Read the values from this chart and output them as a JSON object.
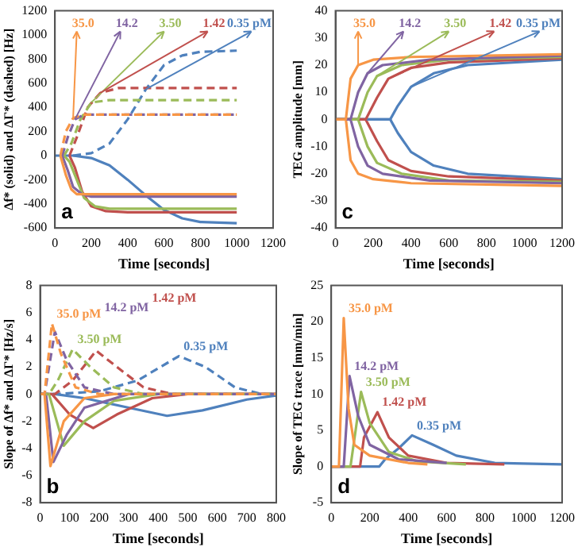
{
  "chart_data": [
    {
      "type": "line",
      "xlabel": "Time [seconds]",
      "ylabel": "Δf* (solid) and ΔΓ* (dashed) [Hz]",
      "xlim": [
        0,
        1200
      ],
      "xticks": [
        0,
        200,
        400,
        600,
        800,
        1000,
        1200
      ],
      "ylim": [
        -600,
        1200
      ],
      "yticks": [
        -600,
        -400,
        -200,
        0,
        200,
        400,
        600,
        800,
        1000,
        1200
      ],
      "grid": false,
      "legend": false,
      "marker": "none",
      "annotations": [
        "a"
      ],
      "series": [
        {
          "name": "35.0",
          "color": "#f79646",
          "line_style": "dashed",
          "x": [
            30,
            60,
            100,
            150,
            1000
          ],
          "values": [
            0,
            200,
            310,
            340,
            340
          ]
        },
        {
          "name": "14.2",
          "color": "#8064a2",
          "line_style": "dashed",
          "x": [
            40,
            70,
            110,
            160,
            1000
          ],
          "values": [
            0,
            150,
            300,
            340,
            340
          ]
        },
        {
          "name": "3.50",
          "color": "#9bbb59",
          "line_style": "dashed",
          "x": [
            50,
            90,
            140,
            200,
            300,
            1000
          ],
          "values": [
            0,
            100,
            300,
            440,
            460,
            460
          ]
        },
        {
          "name": "1.42",
          "color": "#c0504d",
          "line_style": "dashed",
          "x": [
            80,
            120,
            180,
            250,
            350,
            1000
          ],
          "values": [
            0,
            150,
            400,
            520,
            560,
            560
          ]
        },
        {
          "name": "0.35 pM",
          "color": "#4f81bd",
          "line_style": "dashed",
          "x": [
            100,
            200,
            300,
            400,
            500,
            600,
            700,
            800,
            1000
          ],
          "values": [
            0,
            20,
            100,
            300,
            550,
            750,
            830,
            860,
            870
          ]
        },
        {
          "color": "#f79646",
          "line_style": "solid",
          "x": [
            30,
            60,
            90,
            120,
            150,
            200,
            1000
          ],
          "values": [
            0,
            -160,
            -280,
            -320,
            -320,
            -320,
            -320
          ]
        },
        {
          "color": "#8064a2",
          "line_style": "solid",
          "x": [
            40,
            70,
            100,
            150,
            200,
            1000
          ],
          "values": [
            0,
            -120,
            -260,
            -320,
            -340,
            -340
          ]
        },
        {
          "color": "#9bbb59",
          "line_style": "solid",
          "x": [
            50,
            80,
            120,
            160,
            220,
            300,
            1000
          ],
          "values": [
            0,
            -50,
            -200,
            -350,
            -420,
            -440,
            -440
          ]
        },
        {
          "color": "#c0504d",
          "line_style": "solid",
          "x": [
            80,
            110,
            150,
            200,
            280,
            400,
            1000
          ],
          "values": [
            0,
            -100,
            -300,
            -420,
            -460,
            -470,
            -470
          ]
        },
        {
          "color": "#4f81bd",
          "line_style": "solid",
          "x": [
            0,
            100,
            200,
            300,
            400,
            500,
            600,
            700,
            800,
            1000
          ],
          "values": [
            0,
            0,
            -20,
            -80,
            -200,
            -330,
            -450,
            -520,
            -550,
            -560
          ]
        }
      ]
    },
    {
      "type": "line",
      "xlabel": "Time [seconds]",
      "ylabel": "TEG amplitude [mm]",
      "xlim": [
        0,
        1200
      ],
      "xticks": [
        0,
        200,
        400,
        600,
        800,
        1000,
        1200
      ],
      "ylim": [
        -40,
        40
      ],
      "yticks": [
        -40,
        -30,
        -20,
        -10,
        0,
        10,
        20,
        30,
        40
      ],
      "grid": false,
      "legend": false,
      "marker": "none",
      "line_style": "solid",
      "annotations": [
        "c"
      ],
      "series": [
        {
          "name": "35.0",
          "color": "#f79646",
          "x": [
            0,
            55,
            80,
            120,
            200,
            400,
            1200
          ],
          "values": [
            0,
            0,
            15,
            20,
            22,
            23,
            24
          ]
        },
        {
          "name": "14.2",
          "color": "#8064a2",
          "x": [
            0,
            80,
            120,
            170,
            250,
            500,
            1200
          ],
          "values": [
            0,
            0,
            10,
            17,
            20,
            22,
            23.5
          ]
        },
        {
          "name": "3.50",
          "color": "#9bbb59",
          "x": [
            0,
            120,
            170,
            220,
            350,
            600,
            1200
          ],
          "values": [
            0,
            0,
            10,
            16,
            20,
            22,
            23
          ]
        },
        {
          "name": "1.42",
          "color": "#c0504d",
          "x": [
            0,
            160,
            220,
            280,
            400,
            600,
            1200
          ],
          "values": [
            0,
            0,
            8,
            15,
            19,
            21,
            22.5
          ]
        },
        {
          "name": "0.35 pM",
          "color": "#4f81bd",
          "x": [
            0,
            290,
            330,
            400,
            520,
            700,
            1200
          ],
          "values": [
            0,
            0,
            5,
            12,
            17,
            20,
            22
          ]
        },
        {
          "color": "#f79646",
          "x": [
            0,
            55,
            80,
            120,
            200,
            400,
            1200
          ],
          "values": [
            0,
            0,
            -15,
            -20,
            -22,
            -23.5,
            -24.5
          ]
        },
        {
          "color": "#8064a2",
          "x": [
            0,
            80,
            120,
            170,
            250,
            500,
            1200
          ],
          "values": [
            0,
            0,
            -10,
            -17,
            -20,
            -22.5,
            -23.5
          ]
        },
        {
          "color": "#9bbb59",
          "x": [
            0,
            120,
            170,
            220,
            350,
            600,
            1200
          ],
          "values": [
            0,
            0,
            -10,
            -16,
            -20,
            -22.5,
            -23
          ]
        },
        {
          "color": "#c0504d",
          "x": [
            0,
            160,
            220,
            280,
            400,
            600,
            1200
          ],
          "values": [
            0,
            0,
            -8,
            -15,
            -19,
            -21,
            -22.5
          ]
        },
        {
          "color": "#4f81bd",
          "x": [
            0,
            290,
            330,
            400,
            520,
            700,
            1200
          ],
          "values": [
            0,
            0,
            -5,
            -12,
            -17,
            -20,
            -22
          ]
        }
      ]
    },
    {
      "type": "line",
      "xlabel": "Time [seconds]",
      "ylabel": "Slope of Δf* and ΔΓ* [Hz/s]",
      "xlim": [
        0,
        800
      ],
      "xticks": [
        0,
        100,
        200,
        300,
        400,
        500,
        600,
        700,
        800
      ],
      "ylim": [
        -8,
        8
      ],
      "yticks": [
        -8,
        -6,
        -4,
        -2,
        0,
        2,
        4,
        6,
        8
      ],
      "grid": false,
      "legend": false,
      "marker": "none",
      "annotations": [
        "b"
      ],
      "series": [
        {
          "name": "35.0 pM",
          "color": "#f79646",
          "line_style": "dashed",
          "x": [
            0,
            15,
            40,
            70,
            120,
            200,
            800
          ],
          "values": [
            0,
            0,
            5.2,
            3,
            0.5,
            0,
            0
          ]
        },
        {
          "name": "14.2 pM",
          "color": "#8064a2",
          "line_style": "dashed",
          "x": [
            0,
            15,
            50,
            90,
            150,
            250,
            800
          ],
          "values": [
            0,
            0,
            4.6,
            2.5,
            0.5,
            0,
            0
          ]
        },
        {
          "name": "3.50 pM",
          "color": "#9bbb59",
          "line_style": "dashed",
          "x": [
            0,
            30,
            60,
            110,
            170,
            250,
            350,
            800
          ],
          "values": [
            0,
            0,
            1,
            3.3,
            2,
            0.5,
            0,
            0
          ]
        },
        {
          "name": "1.42 pM",
          "color": "#c0504d",
          "line_style": "dashed",
          "x": [
            0,
            50,
            110,
            190,
            260,
            350,
            450,
            800
          ],
          "values": [
            0,
            0,
            1,
            3.2,
            2,
            0.5,
            0,
            0
          ]
        },
        {
          "name": "0.35 pM",
          "color": "#4f81bd",
          "line_style": "dashed",
          "x": [
            0,
            50,
            200,
            330,
            470,
            560,
            660,
            750,
            800
          ],
          "values": [
            0,
            0,
            0.2,
            1,
            2.8,
            2,
            0.5,
            0,
            0
          ]
        },
        {
          "color": "#f79646",
          "line_style": "solid",
          "x": [
            0,
            15,
            35,
            80,
            150,
            250,
            800
          ],
          "values": [
            0,
            0,
            -5.3,
            -2,
            -0.3,
            0,
            0
          ]
        },
        {
          "color": "#8064a2",
          "line_style": "solid",
          "x": [
            0,
            20,
            45,
            90,
            150,
            300,
            800
          ],
          "values": [
            0,
            0,
            -5,
            -3,
            -1,
            0,
            0
          ]
        },
        {
          "color": "#9bbb59",
          "line_style": "solid",
          "x": [
            0,
            30,
            80,
            150,
            250,
            400,
            800
          ],
          "values": [
            0,
            0,
            -3.8,
            -2,
            -0.5,
            0,
            0
          ]
        },
        {
          "color": "#c0504d",
          "line_style": "solid",
          "x": [
            0,
            40,
            100,
            180,
            260,
            380,
            500,
            800
          ],
          "values": [
            0,
            0,
            -1.5,
            -2.5,
            -1.5,
            -0.3,
            0,
            0
          ]
        },
        {
          "color": "#4f81bd",
          "line_style": "solid",
          "x": [
            0,
            50,
            150,
            300,
            430,
            550,
            700,
            800
          ],
          "values": [
            0,
            0,
            -0.3,
            -1,
            -1.6,
            -1.2,
            -0.4,
            -0.1
          ]
        }
      ]
    },
    {
      "type": "line",
      "xlabel": "Time [seconds]",
      "ylabel": "Slope of TEG trace [mm/min]",
      "xlim": [
        0,
        1200
      ],
      "xticks": [
        0,
        200,
        400,
        600,
        800,
        1000,
        1200
      ],
      "ylim": [
        -5,
        25
      ],
      "yticks": [
        -5,
        0,
        5,
        10,
        15,
        20,
        25
      ],
      "grid": false,
      "legend": false,
      "marker": "none",
      "line_style": "solid",
      "annotations": [
        "d"
      ],
      "series": [
        {
          "name": "35.0 pM",
          "color": "#f79646",
          "x": [
            0,
            40,
            65,
            90,
            120,
            200,
            400,
            500
          ],
          "values": [
            0,
            0,
            20.5,
            8,
            3,
            1.5,
            0.5,
            0.3
          ]
        },
        {
          "name": "14.2 pM",
          "color": "#8064a2",
          "x": [
            0,
            65,
            95,
            140,
            200,
            350,
            600
          ],
          "values": [
            0,
            0,
            12.5,
            7,
            3,
            1,
            0.5
          ]
        },
        {
          "name": "3.50 pM",
          "color": "#9bbb59",
          "x": [
            0,
            100,
            155,
            200,
            300,
            450,
            700
          ],
          "values": [
            0,
            0,
            10.3,
            6,
            2,
            0.7,
            0.3
          ]
        },
        {
          "name": "1.42 pM",
          "color": "#c0504d",
          "x": [
            0,
            150,
            170,
            240,
            300,
            400,
            600,
            900
          ],
          "values": [
            0,
            0,
            4,
            7.5,
            4,
            1.5,
            0.5,
            0.3
          ]
        },
        {
          "name": "0.35 pM",
          "color": "#4f81bd",
          "x": [
            0,
            250,
            280,
            350,
            420,
            530,
            650,
            850,
            1200
          ],
          "values": [
            0,
            0,
            1,
            2.5,
            4.3,
            3,
            1.5,
            0.5,
            0.3
          ]
        }
      ]
    }
  ]
}
